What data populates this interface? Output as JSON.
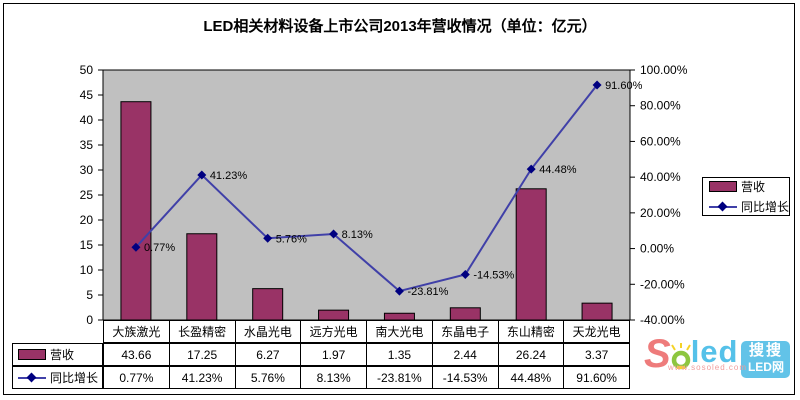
{
  "title": "LED相关材料设备上市公司2013年营收情况（单位：亿元）",
  "chart_data": {
    "type": "bar",
    "combo": "bar+line",
    "title": "LED相关材料设备上市公司2013年营收情况（单位：亿元）",
    "categories": [
      "大族激光",
      "长盈精密",
      "水晶光电",
      "远方光电",
      "南大光电",
      "东晶电子",
      "东山精密",
      "天龙光电"
    ],
    "series": [
      {
        "name": "营收",
        "type": "bar",
        "axis": "left",
        "values": [
          43.66,
          17.25,
          6.27,
          1.97,
          1.35,
          2.44,
          26.24,
          3.37
        ]
      },
      {
        "name": "同比增长",
        "type": "line",
        "axis": "right",
        "values": [
          0.77,
          41.23,
          5.76,
          8.13,
          -23.81,
          -14.53,
          44.48,
          91.6
        ],
        "labels": [
          "0.77%",
          "41.23%",
          "5.76%",
          "8.13%",
          "-23.81%",
          "-14.53%",
          "44.48%",
          "91.60%"
        ]
      }
    ],
    "left_axis": {
      "min": 0,
      "max": 50,
      "step": 5,
      "ticks": [
        "0",
        "5",
        "10",
        "15",
        "20",
        "25",
        "30",
        "35",
        "40",
        "45",
        "50"
      ]
    },
    "right_axis": {
      "min": -40,
      "max": 100,
      "step": 20,
      "ticks": [
        "-40.00%",
        "-20.00%",
        "0.00%",
        "20.00%",
        "40.00%",
        "60.00%",
        "80.00%",
        "100.00%"
      ]
    },
    "grid": false,
    "legend_position": "right",
    "colors": {
      "bar": "#993366",
      "line": "#4040A8",
      "marker": "#000080",
      "plot_bg": "#C0C0C0",
      "axis": "#000000"
    }
  },
  "legend": {
    "items": [
      {
        "label": "营收",
        "key": "bar"
      },
      {
        "label": "同比增长",
        "key": "line"
      }
    ]
  },
  "table": {
    "categories": [
      "大族激光",
      "长盈精密",
      "水晶光电",
      "远方光电",
      "南大光电",
      "东晶电子",
      "东山精密",
      "天龙光电"
    ],
    "rows": [
      {
        "label": "营收",
        "key": "bar",
        "values": [
          "43.66",
          "17.25",
          "6.27",
          "1.97",
          "1.35",
          "2.44",
          "26.24",
          "3.37"
        ]
      },
      {
        "label": "同比增长",
        "key": "line",
        "values": [
          "0.77%",
          "41.23%",
          "5.76%",
          "8.13%",
          "-23.81%",
          "-14.53%",
          "44.48%",
          "91.60%"
        ]
      }
    ]
  },
  "watermark": {
    "logo_text_s": "S",
    "logo_text_led": "led",
    "url": "www.sosoled.com",
    "badge_line1": "搜搜",
    "badge_line2": "LED网",
    "colors": {
      "s": "#EE7B7B",
      "led": "#55C1E9",
      "badge": "#62C3E8",
      "bulb": "#8DC63F",
      "rays": "#F5D327"
    }
  }
}
